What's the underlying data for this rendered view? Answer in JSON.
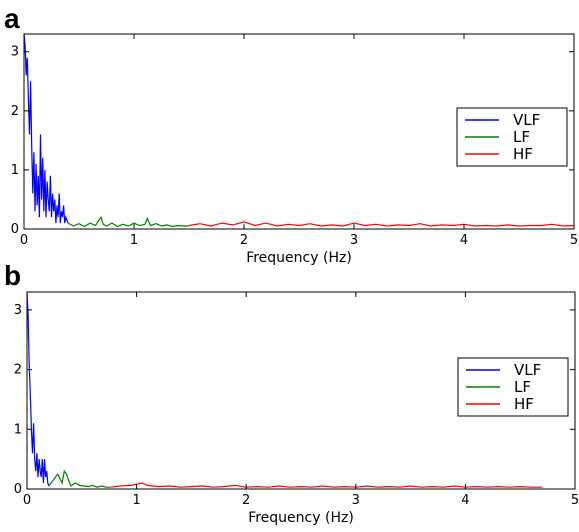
{
  "chart_data": [
    {
      "panel": "a",
      "type": "line",
      "xlabel": "Frequency (Hz)",
      "ylabel": "",
      "xlim": [
        0,
        5
      ],
      "ylim": [
        0,
        3.3
      ],
      "xticks": [
        "0",
        "1",
        "2",
        "3",
        "4",
        "5"
      ],
      "yticks": [
        "0",
        "1",
        "2",
        "3"
      ],
      "legend_position": "center-right",
      "series": [
        {
          "name": "VLF",
          "color": "#0000ff",
          "x": [
            0.0,
            0.01,
            0.02,
            0.03,
            0.04,
            0.05,
            0.06,
            0.07,
            0.08,
            0.09,
            0.1,
            0.11,
            0.12,
            0.13,
            0.14,
            0.15,
            0.16,
            0.17,
            0.18,
            0.19,
            0.2,
            0.21,
            0.22,
            0.23,
            0.24,
            0.25,
            0.26,
            0.27,
            0.28,
            0.29,
            0.3,
            0.31,
            0.32,
            0.33,
            0.34,
            0.35,
            0.36,
            0.37,
            0.38,
            0.39,
            0.4
          ],
          "values": [
            3.3,
            3.1,
            2.6,
            2.9,
            2.2,
            1.6,
            2.5,
            1.4,
            0.6,
            1.3,
            0.3,
            1.1,
            0.4,
            0.9,
            0.2,
            1.6,
            0.5,
            1.2,
            0.3,
            1.0,
            0.2,
            0.8,
            0.5,
            0.3,
            0.9,
            0.2,
            0.6,
            0.3,
            0.5,
            0.1,
            0.4,
            0.2,
            0.6,
            0.1,
            0.3,
            0.2,
            0.4,
            0.1,
            0.2,
            0.15,
            0.1
          ]
        },
        {
          "name": "LF",
          "color": "#008000",
          "x": [
            0.4,
            0.45,
            0.5,
            0.55,
            0.6,
            0.65,
            0.7,
            0.72,
            0.75,
            0.8,
            0.85,
            0.9,
            0.95,
            1.0,
            1.05,
            1.1,
            1.12,
            1.15,
            1.2,
            1.25,
            1.3,
            1.35,
            1.4,
            1.45,
            1.5
          ],
          "values": [
            0.1,
            0.05,
            0.09,
            0.04,
            0.1,
            0.06,
            0.2,
            0.08,
            0.05,
            0.1,
            0.04,
            0.08,
            0.05,
            0.1,
            0.06,
            0.08,
            0.18,
            0.06,
            0.09,
            0.05,
            0.07,
            0.04,
            0.06,
            0.05,
            0.05
          ]
        },
        {
          "name": "HF",
          "color": "#ff0000",
          "x": [
            1.5,
            1.6,
            1.7,
            1.8,
            1.9,
            2.0,
            2.1,
            2.2,
            2.3,
            2.4,
            2.5,
            2.6,
            2.7,
            2.8,
            2.9,
            3.0,
            3.1,
            3.2,
            3.3,
            3.4,
            3.5,
            3.6,
            3.7,
            3.8,
            3.9,
            4.0,
            4.1,
            4.2,
            4.3,
            4.4,
            4.5,
            4.6,
            4.7,
            4.8,
            4.9,
            5.0
          ],
          "values": [
            0.06,
            0.09,
            0.05,
            0.1,
            0.07,
            0.12,
            0.06,
            0.1,
            0.05,
            0.08,
            0.06,
            0.09,
            0.05,
            0.07,
            0.05,
            0.1,
            0.06,
            0.08,
            0.05,
            0.07,
            0.06,
            0.09,
            0.05,
            0.07,
            0.06,
            0.08,
            0.05,
            0.06,
            0.05,
            0.07,
            0.05,
            0.06,
            0.06,
            0.08,
            0.05,
            0.06
          ]
        }
      ]
    },
    {
      "panel": "b",
      "type": "line",
      "xlabel": "Frequency (Hz)",
      "ylabel": "",
      "xlim": [
        0,
        5
      ],
      "ylim": [
        0,
        3.3
      ],
      "xticks": [
        "0",
        "1",
        "2",
        "3",
        "4",
        "5"
      ],
      "yticks": [
        "0",
        "1",
        "2",
        "3"
      ],
      "legend_position": "lower-right",
      "series": [
        {
          "name": "VLF",
          "color": "#0000ff",
          "x": [
            0.0,
            0.01,
            0.02,
            0.03,
            0.04,
            0.05,
            0.06,
            0.07,
            0.08,
            0.09,
            0.1,
            0.11,
            0.12,
            0.13,
            0.14,
            0.15,
            0.16,
            0.17,
            0.18,
            0.19,
            0.2
          ],
          "values": [
            3.3,
            2.9,
            2.1,
            1.6,
            1.0,
            0.6,
            1.1,
            0.5,
            0.3,
            0.6,
            0.2,
            0.5,
            0.3,
            0.2,
            0.5,
            0.1,
            0.5,
            0.2,
            0.3,
            0.1,
            0.05
          ]
        },
        {
          "name": "LF",
          "color": "#008000",
          "x": [
            0.2,
            0.24,
            0.28,
            0.32,
            0.34,
            0.36,
            0.38,
            0.4,
            0.44,
            0.48,
            0.52,
            0.56,
            0.6,
            0.64,
            0.68,
            0.72,
            0.76
          ],
          "values": [
            0.05,
            0.15,
            0.25,
            0.1,
            0.3,
            0.25,
            0.15,
            0.05,
            0.1,
            0.06,
            0.05,
            0.04,
            0.06,
            0.03,
            0.05,
            0.03,
            0.03
          ]
        },
        {
          "name": "HF",
          "color": "#ff0000",
          "x": [
            0.76,
            0.85,
            0.95,
            1.05,
            1.1,
            1.2,
            1.3,
            1.4,
            1.5,
            1.6,
            1.7,
            1.8,
            1.9,
            2.0,
            2.1,
            2.2,
            2.3,
            2.4,
            2.5,
            2.6,
            2.7,
            2.8,
            2.9,
            3.0,
            3.1,
            3.2,
            3.3,
            3.4,
            3.5,
            3.6,
            3.7,
            3.8,
            3.9,
            4.0,
            4.1,
            4.2,
            4.3,
            4.4,
            4.5,
            4.6,
            4.7
          ],
          "values": [
            0.03,
            0.05,
            0.06,
            0.1,
            0.06,
            0.04,
            0.05,
            0.03,
            0.04,
            0.05,
            0.03,
            0.04,
            0.06,
            0.03,
            0.04,
            0.03,
            0.05,
            0.03,
            0.04,
            0.03,
            0.05,
            0.03,
            0.04,
            0.03,
            0.05,
            0.03,
            0.04,
            0.03,
            0.05,
            0.03,
            0.04,
            0.03,
            0.05,
            0.03,
            0.04,
            0.03,
            0.04,
            0.03,
            0.04,
            0.03,
            0.03
          ]
        }
      ]
    }
  ]
}
